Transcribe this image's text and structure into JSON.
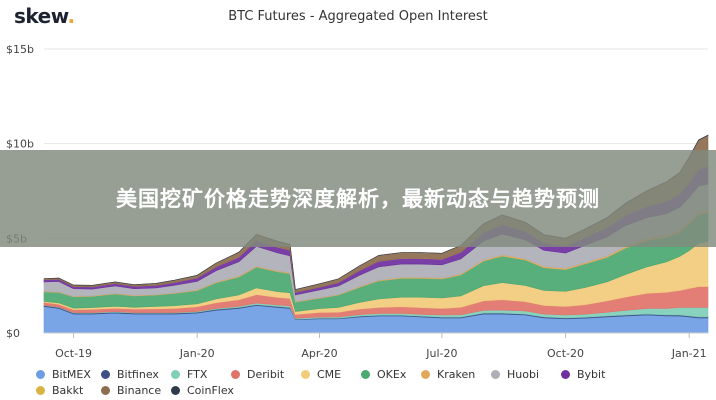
{
  "brand": {
    "name": "skew",
    "dot": "."
  },
  "overlay": {
    "text": "美国挖矿价格走势深度解析，最新动态与趋势预测"
  },
  "chart_data": {
    "type": "area",
    "stacked": true,
    "title": "BTC Futures - Aggregated Open Interest",
    "ylim": [
      0,
      15
    ],
    "y_ticks": [
      {
        "value": 0,
        "label": "$0"
      },
      {
        "value": 5,
        "label": "$5b"
      },
      {
        "value": 10,
        "label": "$10b"
      },
      {
        "value": 15,
        "label": "$15b"
      }
    ],
    "x_range": [
      "2019-09-09",
      "2021-01-15"
    ],
    "x_ticks": [
      {
        "date": "2019-10-01",
        "label": "Oct-19"
      },
      {
        "date": "2020-01-01",
        "label": "Jan-20"
      },
      {
        "date": "2020-04-01",
        "label": "Apr-20"
      },
      {
        "date": "2020-07-01",
        "label": "Jul-20"
      },
      {
        "date": "2020-10-01",
        "label": "Oct-20"
      },
      {
        "date": "2021-01-01",
        "label": "Jan-21"
      }
    ],
    "grid": "horizontal",
    "legend_position": "bottom",
    "x": [
      "2019-09-09",
      "2019-09-20",
      "2019-10-01",
      "2019-10-15",
      "2019-11-01",
      "2019-11-15",
      "2019-12-01",
      "2019-12-15",
      "2020-01-01",
      "2020-01-15",
      "2020-02-01",
      "2020-02-14",
      "2020-03-01",
      "2020-03-10",
      "2020-03-14",
      "2020-04-01",
      "2020-04-15",
      "2020-05-01",
      "2020-05-15",
      "2020-06-01",
      "2020-06-15",
      "2020-07-01",
      "2020-07-15",
      "2020-08-01",
      "2020-08-15",
      "2020-09-01",
      "2020-09-15",
      "2020-10-01",
      "2020-10-15",
      "2020-11-01",
      "2020-11-15",
      "2020-12-01",
      "2020-12-15",
      "2020-12-25",
      "2021-01-01",
      "2021-01-08",
      "2021-01-15"
    ],
    "series": [
      {
        "name": "BitMEX",
        "color": "#6e9de5",
        "values": [
          1.4,
          1.3,
          1.0,
          1.0,
          1.05,
          1.0,
          1.0,
          1.0,
          1.05,
          1.2,
          1.3,
          1.45,
          1.35,
          1.3,
          0.7,
          0.75,
          0.75,
          0.85,
          0.9,
          0.9,
          0.85,
          0.8,
          0.8,
          1.0,
          1.0,
          0.95,
          0.8,
          0.75,
          0.78,
          0.85,
          0.9,
          0.95,
          0.9,
          0.9,
          0.85,
          0.8,
          0.8
        ]
      },
      {
        "name": "Bitfinex",
        "color": "#3e4f86",
        "values": [
          0.05,
          0.05,
          0.05,
          0.05,
          0.05,
          0.05,
          0.05,
          0.05,
          0.05,
          0.05,
          0.05,
          0.05,
          0.05,
          0.05,
          0.03,
          0.03,
          0.03,
          0.04,
          0.04,
          0.04,
          0.04,
          0.04,
          0.04,
          0.05,
          0.05,
          0.05,
          0.05,
          0.05,
          0.05,
          0.05,
          0.05,
          0.05,
          0.05,
          0.05,
          0.05,
          0.05,
          0.05
        ]
      },
      {
        "name": "FTX",
        "color": "#7fcfb8",
        "values": [
          0.02,
          0.02,
          0.03,
          0.03,
          0.03,
          0.03,
          0.03,
          0.03,
          0.04,
          0.05,
          0.06,
          0.08,
          0.08,
          0.08,
          0.05,
          0.06,
          0.07,
          0.08,
          0.09,
          0.1,
          0.1,
          0.11,
          0.12,
          0.15,
          0.16,
          0.16,
          0.15,
          0.15,
          0.16,
          0.2,
          0.25,
          0.3,
          0.35,
          0.4,
          0.45,
          0.5,
          0.5
        ]
      },
      {
        "name": "Deribit",
        "color": "#e0736a",
        "values": [
          0.15,
          0.15,
          0.15,
          0.17,
          0.18,
          0.18,
          0.2,
          0.22,
          0.25,
          0.3,
          0.35,
          0.45,
          0.4,
          0.4,
          0.2,
          0.25,
          0.25,
          0.3,
          0.32,
          0.35,
          0.35,
          0.35,
          0.4,
          0.5,
          0.55,
          0.5,
          0.45,
          0.45,
          0.5,
          0.6,
          0.7,
          0.8,
          0.85,
          0.9,
          1.0,
          1.1,
          1.1
        ]
      },
      {
        "name": "CME",
        "color": "#f2cb7b",
        "values": [
          0.05,
          0.07,
          0.08,
          0.09,
          0.1,
          0.1,
          0.12,
          0.14,
          0.15,
          0.2,
          0.25,
          0.35,
          0.3,
          0.3,
          0.15,
          0.2,
          0.25,
          0.35,
          0.45,
          0.5,
          0.55,
          0.55,
          0.6,
          0.8,
          0.9,
          0.85,
          0.8,
          0.8,
          0.9,
          1.0,
          1.2,
          1.4,
          1.6,
          1.8,
          2.0,
          2.3,
          2.4
        ]
      },
      {
        "name": "OKEx",
        "color": "#4aa870",
        "values": [
          0.5,
          0.55,
          0.6,
          0.6,
          0.65,
          0.6,
          0.6,
          0.65,
          0.7,
          0.85,
          0.95,
          1.1,
          1.05,
          1.0,
          0.5,
          0.55,
          0.65,
          0.8,
          0.95,
          1.0,
          1.0,
          1.0,
          1.1,
          1.3,
          1.4,
          1.35,
          1.2,
          1.15,
          1.25,
          1.3,
          1.4,
          1.4,
          1.3,
          1.3,
          1.4,
          1.5,
          1.5
        ]
      },
      {
        "name": "Kraken",
        "color": "#e2a85a",
        "values": [
          0.03,
          0.03,
          0.03,
          0.03,
          0.03,
          0.03,
          0.03,
          0.03,
          0.04,
          0.04,
          0.05,
          0.05,
          0.05,
          0.05,
          0.03,
          0.03,
          0.03,
          0.04,
          0.04,
          0.05,
          0.05,
          0.05,
          0.05,
          0.06,
          0.07,
          0.07,
          0.07,
          0.07,
          0.07,
          0.08,
          0.09,
          0.1,
          0.1,
          0.1,
          0.11,
          0.12,
          0.12
        ]
      },
      {
        "name": "Huobi",
        "color": "#aeaeb6",
        "values": [
          0.5,
          0.55,
          0.4,
          0.35,
          0.4,
          0.35,
          0.35,
          0.4,
          0.45,
          0.6,
          0.75,
          1.05,
          0.95,
          0.9,
          0.35,
          0.4,
          0.45,
          0.6,
          0.7,
          0.7,
          0.7,
          0.7,
          0.8,
          1.0,
          1.1,
          1.0,
          0.85,
          0.8,
          0.9,
          1.0,
          1.1,
          1.1,
          1.15,
          1.2,
          1.3,
          1.4,
          1.4
        ]
      },
      {
        "name": "Bybit",
        "color": "#6e2fa0",
        "values": [
          0.12,
          0.12,
          0.12,
          0.12,
          0.13,
          0.13,
          0.14,
          0.15,
          0.18,
          0.2,
          0.25,
          0.32,
          0.3,
          0.3,
          0.14,
          0.15,
          0.18,
          0.25,
          0.3,
          0.3,
          0.3,
          0.3,
          0.35,
          0.45,
          0.5,
          0.45,
          0.4,
          0.38,
          0.42,
          0.5,
          0.55,
          0.6,
          0.65,
          0.7,
          0.8,
          0.9,
          0.95
        ]
      },
      {
        "name": "Bakkt",
        "color": "#d9b344",
        "values": [
          0.0,
          0.0,
          0.0,
          0.0,
          0.0,
          0.0,
          0.0,
          0.0,
          0.0,
          0.0,
          0.01,
          0.01,
          0.01,
          0.01,
          0.0,
          0.0,
          0.0,
          0.0,
          0.01,
          0.01,
          0.01,
          0.01,
          0.01,
          0.01,
          0.01,
          0.01,
          0.01,
          0.01,
          0.01,
          0.01,
          0.02,
          0.02,
          0.02,
          0.02,
          0.02,
          0.02,
          0.02
        ]
      },
      {
        "name": "Binance",
        "color": "#8c6d4d",
        "values": [
          0.05,
          0.06,
          0.07,
          0.08,
          0.08,
          0.08,
          0.1,
          0.12,
          0.14,
          0.2,
          0.25,
          0.3,
          0.3,
          0.3,
          0.15,
          0.18,
          0.2,
          0.25,
          0.3,
          0.3,
          0.3,
          0.3,
          0.35,
          0.45,
          0.5,
          0.45,
          0.4,
          0.38,
          0.42,
          0.5,
          0.6,
          0.8,
          1.0,
          1.1,
          1.3,
          1.5,
          1.6
        ]
      },
      {
        "name": "CoinFlex",
        "color": "#2f3a4a",
        "values": [
          0.0,
          0.0,
          0.0,
          0.0,
          0.0,
          0.0,
          0.0,
          0.0,
          0.0,
          0.0,
          0.0,
          0.0,
          0.0,
          0.0,
          0.0,
          0.0,
          0.0,
          0.0,
          0.0,
          0.0,
          0.0,
          0.0,
          0.0,
          0.0,
          0.0,
          0.01,
          0.01,
          0.01,
          0.01,
          0.01,
          0.01,
          0.01,
          0.01,
          0.01,
          0.01,
          0.01,
          0.01
        ]
      }
    ]
  }
}
